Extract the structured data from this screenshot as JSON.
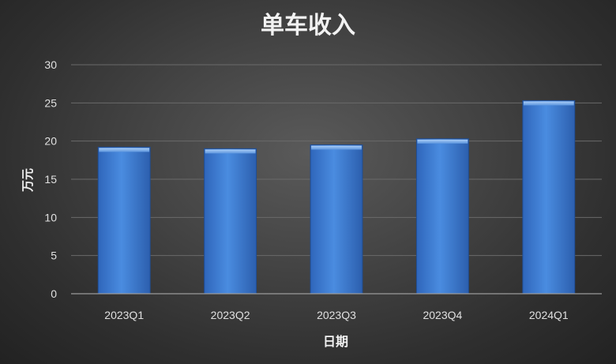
{
  "chart_data": {
    "type": "bar",
    "title": "单车收入",
    "xlabel": "日期",
    "ylabel": "万元",
    "categories": [
      "2023Q1",
      "2023Q2",
      "2023Q3",
      "2023Q4",
      "2024Q1"
    ],
    "values": [
      19.2,
      19.0,
      19.5,
      20.3,
      25.3
    ],
    "ylim": [
      0,
      30
    ],
    "yticks": [
      0,
      5,
      10,
      15,
      20,
      25,
      30
    ],
    "grid": true,
    "legend": "none",
    "colors": {
      "bar_top": "#6aa2e8",
      "bar_mid": "#3f7fd4",
      "bar_bottom": "#2a5fb0",
      "bar_edge": "#1f4e96",
      "bar_cap": "#8cbcf3"
    }
  }
}
